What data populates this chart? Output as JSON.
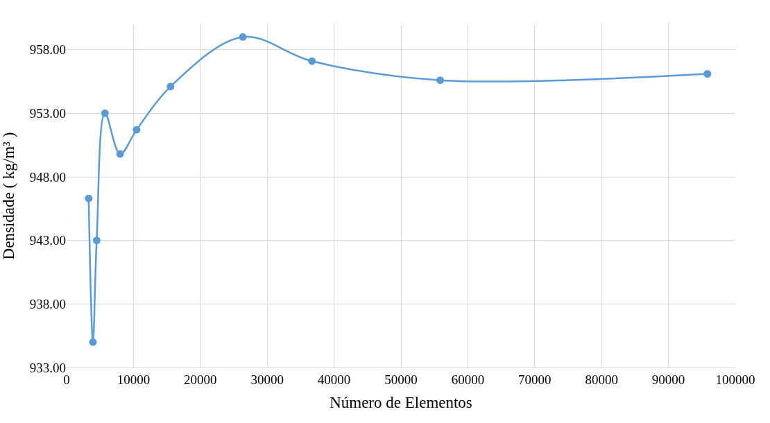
{
  "chart_data": {
    "type": "line",
    "xlabel": "Número de Elementos",
    "ylabel": "Densidade ( kg/m³ )",
    "x": [
      3300,
      3940,
      4500,
      5740,
      8000,
      10470,
      15540,
      26350,
      36700,
      55860,
      95830
    ],
    "series": [
      {
        "color": "#5b9bd5",
        "values": [
          946.3,
          935.0,
          943.0,
          953.0,
          949.8,
          951.7,
          955.1,
          959.0,
          957.1,
          955.6,
          956.1
        ]
      }
    ],
    "xlim": [
      0,
      100000
    ],
    "xticks": [
      0,
      10000,
      20000,
      30000,
      40000,
      50000,
      60000,
      70000,
      80000,
      90000,
      100000
    ],
    "ylim": [
      933,
      960
    ],
    "yticks": [
      {
        "value": 933,
        "label": "933.00"
      },
      {
        "value": 938,
        "label": "938.00"
      },
      {
        "value": 943,
        "label": "943.00"
      },
      {
        "value": 948,
        "label": "948.00"
      },
      {
        "value": 953,
        "label": "953.00"
      },
      {
        "value": 958,
        "label": "958.00"
      }
    ],
    "grid": true,
    "marker": "circle",
    "line_style": "solid",
    "legend": false
  }
}
